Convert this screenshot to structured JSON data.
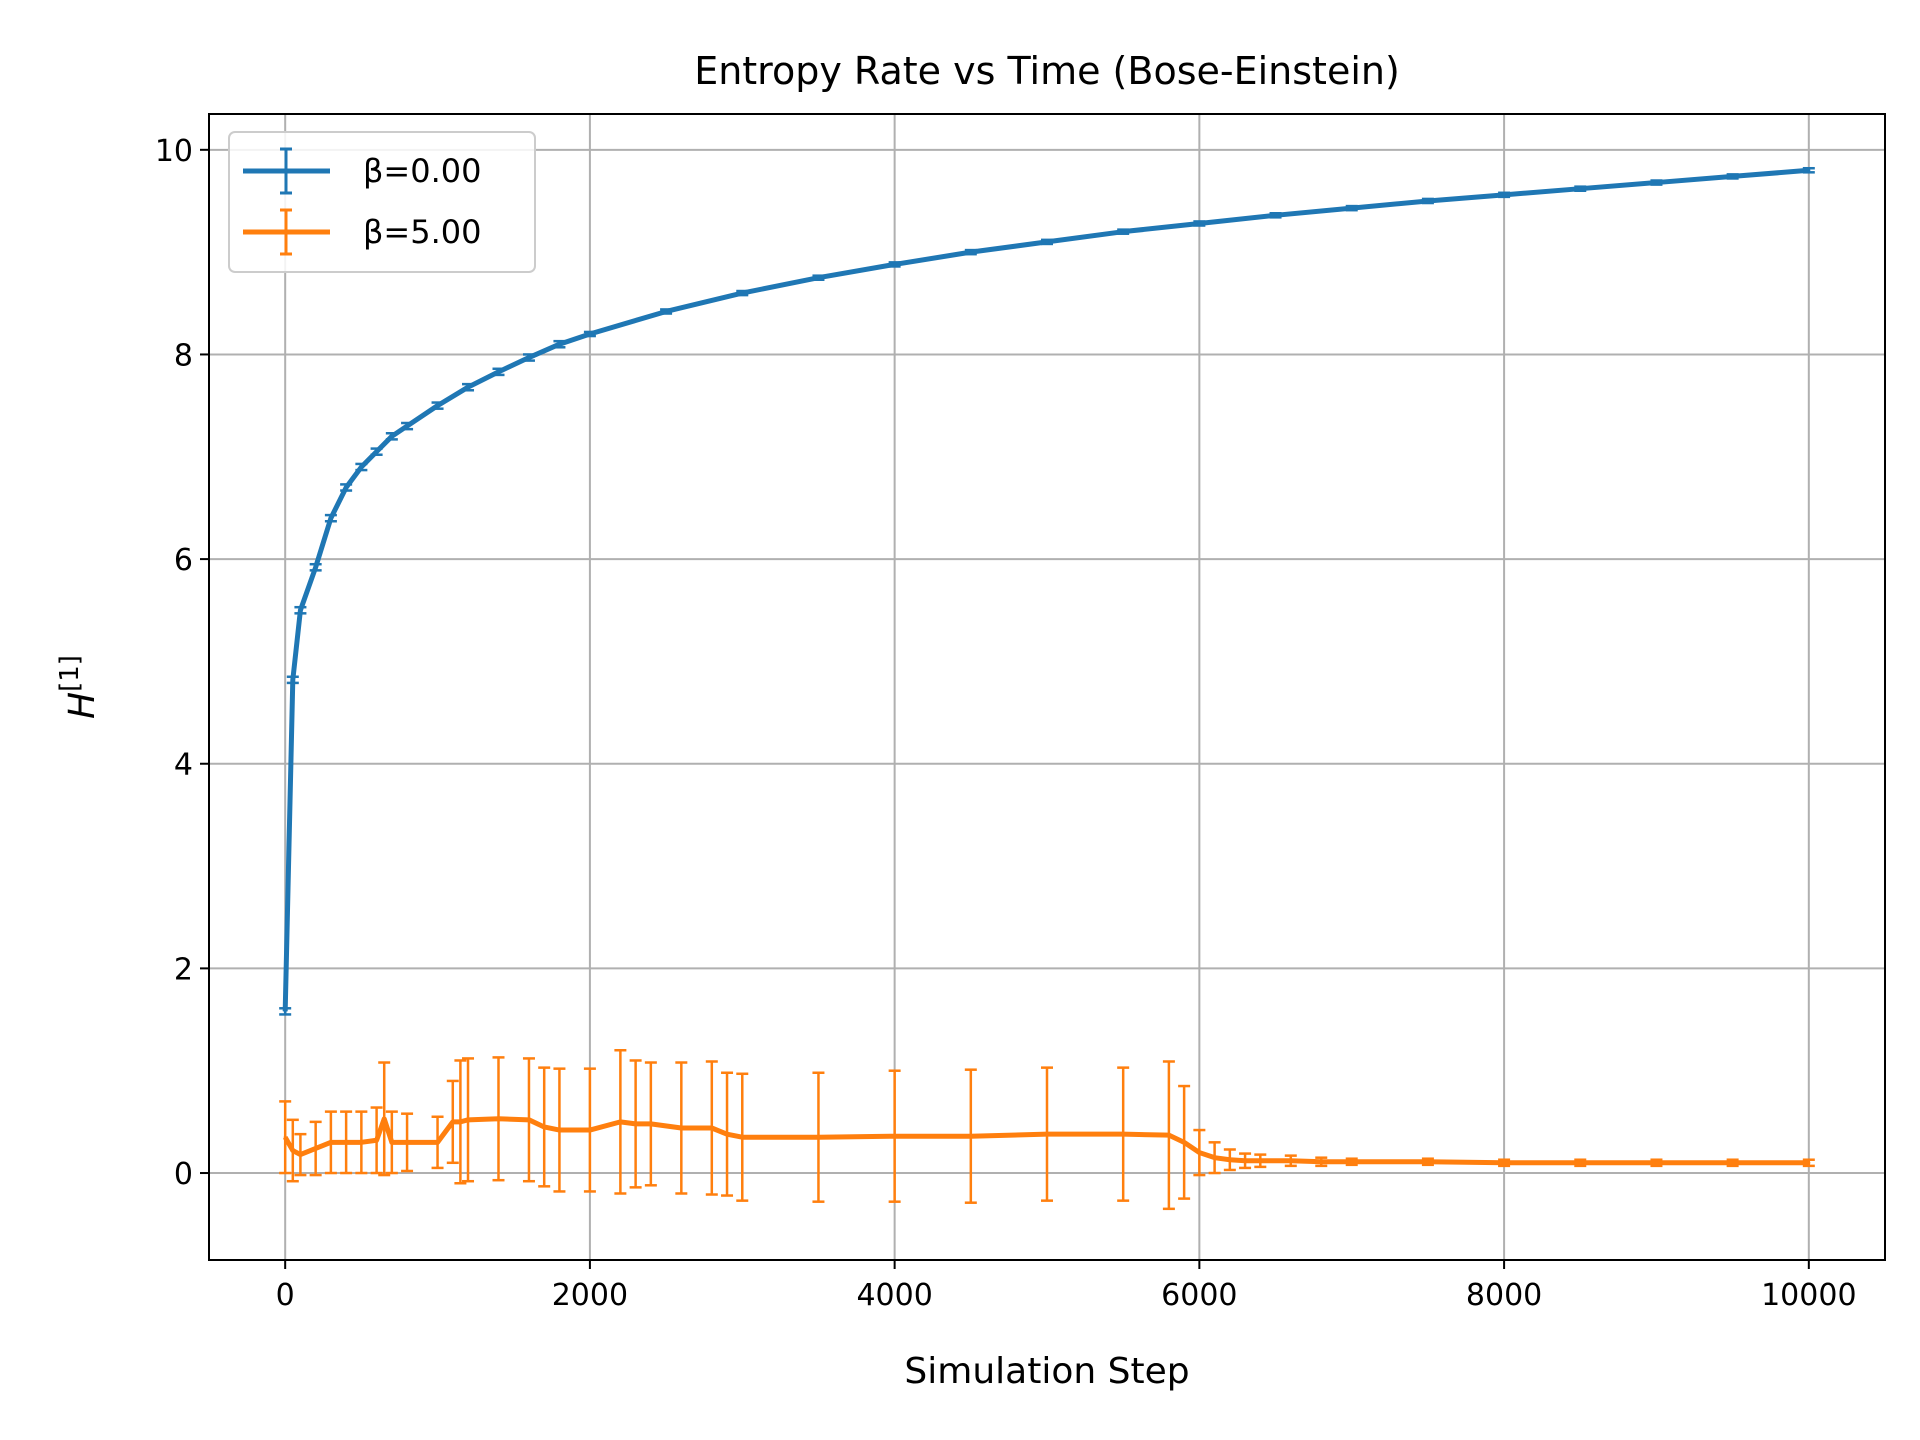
{
  "chart_data": {
    "type": "line",
    "title": "Entropy Rate vs Time (Bose-Einstein)",
    "xlabel": "Simulation Step",
    "ylabel_main": "H",
    "ylabel_sup": "[1]",
    "xlim": [
      -500,
      10500
    ],
    "ylim": [
      -0.85,
      10.35
    ],
    "xticks": [
      0,
      2000,
      4000,
      6000,
      8000,
      10000
    ],
    "yticks": [
      0,
      2,
      4,
      6,
      8,
      10
    ],
    "grid": true,
    "legend_position": "top-left",
    "error_bars": true,
    "series": [
      {
        "name": "β=0.00",
        "color": "#1f77b4",
        "x": [
          0,
          50,
          100,
          200,
          300,
          400,
          500,
          600,
          700,
          800,
          1000,
          1200,
          1400,
          1600,
          1800,
          2000,
          2500,
          3000,
          3500,
          4000,
          4500,
          5000,
          5500,
          6000,
          6500,
          7000,
          7500,
          8000,
          8500,
          9000,
          9500,
          10000
        ],
        "y": [
          1.58,
          4.82,
          5.5,
          5.92,
          6.4,
          6.7,
          6.9,
          7.05,
          7.2,
          7.3,
          7.5,
          7.68,
          7.83,
          7.97,
          8.1,
          8.2,
          8.42,
          8.6,
          8.75,
          8.88,
          9.0,
          9.1,
          9.2,
          9.28,
          9.36,
          9.43,
          9.5,
          9.56,
          9.62,
          9.68,
          9.74,
          9.8
        ],
        "yerr": [
          0.03,
          0.03,
          0.03,
          0.03,
          0.03,
          0.03,
          0.03,
          0.03,
          0.03,
          0.03,
          0.03,
          0.03,
          0.03,
          0.03,
          0.03,
          0.02,
          0.02,
          0.02,
          0.02,
          0.02,
          0.02,
          0.02,
          0.02,
          0.02,
          0.02,
          0.02,
          0.02,
          0.02,
          0.02,
          0.02,
          0.02,
          0.02
        ]
      },
      {
        "name": "β=5.00",
        "color": "#ff7f0e",
        "x": [
          0,
          50,
          100,
          200,
          300,
          400,
          500,
          600,
          650,
          700,
          800,
          1000,
          1100,
          1150,
          1200,
          1400,
          1600,
          1700,
          1800,
          2000,
          2200,
          2300,
          2400,
          2600,
          2800,
          2900,
          3000,
          3500,
          4000,
          4500,
          5000,
          5500,
          5800,
          5900,
          6000,
          6100,
          6200,
          6300,
          6400,
          6600,
          6800,
          7000,
          7500,
          8000,
          8500,
          9000,
          9500,
          10000
        ],
        "y": [
          0.35,
          0.22,
          0.18,
          0.24,
          0.3,
          0.3,
          0.3,
          0.32,
          0.53,
          0.3,
          0.3,
          0.3,
          0.5,
          0.5,
          0.52,
          0.53,
          0.52,
          0.45,
          0.42,
          0.42,
          0.5,
          0.48,
          0.48,
          0.44,
          0.44,
          0.38,
          0.35,
          0.35,
          0.36,
          0.36,
          0.38,
          0.38,
          0.37,
          0.3,
          0.2,
          0.15,
          0.13,
          0.12,
          0.12,
          0.12,
          0.11,
          0.11,
          0.11,
          0.1,
          0.1,
          0.1,
          0.1,
          0.1
        ],
        "yerr": [
          0.35,
          0.3,
          0.2,
          0.26,
          0.3,
          0.3,
          0.3,
          0.32,
          0.55,
          0.3,
          0.28,
          0.25,
          0.4,
          0.6,
          0.6,
          0.6,
          0.6,
          0.58,
          0.6,
          0.6,
          0.7,
          0.62,
          0.6,
          0.64,
          0.65,
          0.6,
          0.62,
          0.63,
          0.64,
          0.65,
          0.65,
          0.65,
          0.72,
          0.55,
          0.22,
          0.15,
          0.1,
          0.07,
          0.06,
          0.05,
          0.04,
          0.03,
          0.03,
          0.03,
          0.03,
          0.03,
          0.03,
          0.03
        ]
      }
    ]
  }
}
